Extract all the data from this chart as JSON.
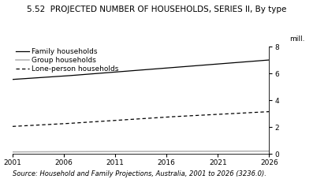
{
  "title": "5.52  PROJECTED NUMBER OF HOUSEHOLDS, SERIES II, By type",
  "ylabel": "mill.",
  "source": "Source: Household and Family Projections, Australia, 2001 to 2026 (3236.0).",
  "years": [
    2001,
    2006,
    2011,
    2016,
    2021,
    2026
  ],
  "family_households": [
    5.55,
    5.8,
    6.1,
    6.4,
    6.7,
    7.0
  ],
  "group_households": [
    0.15,
    0.17,
    0.18,
    0.19,
    0.2,
    0.21
  ],
  "lone_person_households": [
    2.05,
    2.25,
    2.5,
    2.75,
    2.95,
    3.15
  ],
  "ylim": [
    0,
    8
  ],
  "yticks": [
    0,
    2,
    4,
    6,
    8
  ],
  "xlim": [
    2001,
    2026
  ],
  "xticks": [
    2001,
    2006,
    2011,
    2016,
    2021,
    2026
  ],
  "family_color": "#000000",
  "group_color": "#b0b0b0",
  "lone_color": "#000000",
  "bg_color": "#ffffff",
  "legend_family": "Family households",
  "legend_group": "Group households",
  "legend_lone": "Lone-person households",
  "title_fontsize": 7.5,
  "label_fontsize": 6.5,
  "source_fontsize": 6,
  "tick_fontsize": 6.5
}
